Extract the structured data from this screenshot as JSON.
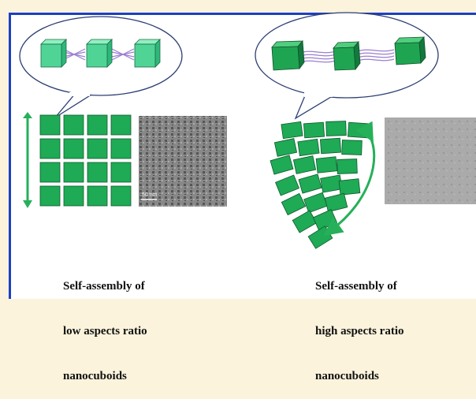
{
  "left_caption": [
    "Self-assembly of",
    "low aspects ratio",
    "nanocuboids"
  ],
  "right_caption": [
    "Self-assembly of",
    "high aspects ratio",
    "nanocuboids"
  ],
  "left_micrograph": {
    "scale_label": "50 nm"
  },
  "colors": {
    "frame": "#1d3fc4",
    "background": "#fbf3dc",
    "cube_green": "#1faa55",
    "arrow_green": "#26b05a",
    "linker_purple": "#9b7fd0"
  }
}
